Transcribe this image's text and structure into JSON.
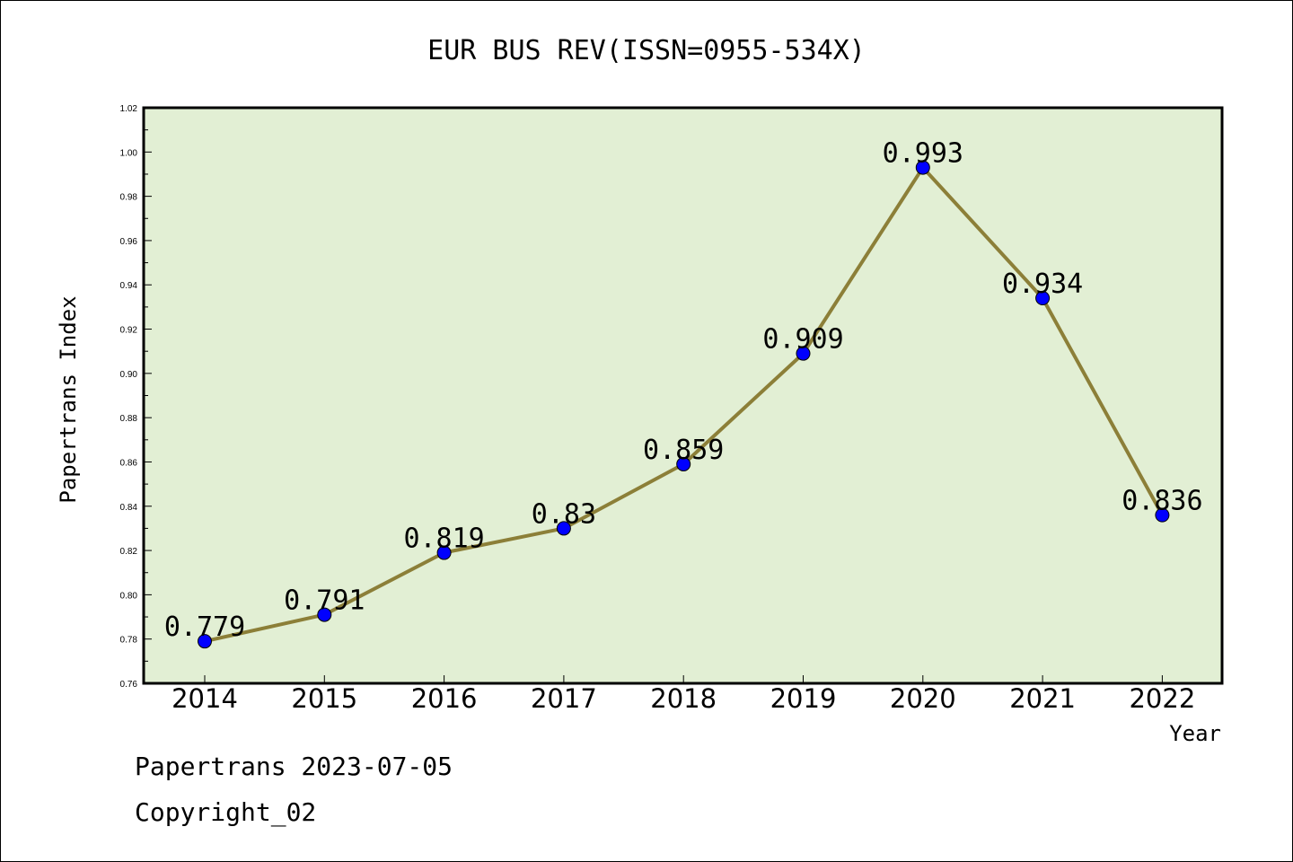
{
  "chart_data": {
    "type": "line",
    "title": "EUR BUS REV(ISSN=0955-534X)",
    "xlabel": "Year",
    "ylabel": "Papertrans Index",
    "categories": [
      "2014",
      "2015",
      "2016",
      "2017",
      "2018",
      "2019",
      "2020",
      "2021",
      "2022"
    ],
    "values": [
      0.779,
      0.791,
      0.819,
      0.83,
      0.859,
      0.909,
      0.993,
      0.934,
      0.836
    ],
    "data_labels": [
      "0.779",
      "0.791",
      "0.819",
      "0.83",
      "0.859",
      "0.909",
      "0.993",
      "0.934",
      "0.836"
    ],
    "ylim": [
      0.76,
      1.02
    ],
    "yticks": [
      "0.76",
      "0.78",
      "0.80",
      "0.82",
      "0.84",
      "0.86",
      "0.88",
      "0.90",
      "0.92",
      "0.94",
      "0.96",
      "0.98",
      "1.00",
      "1.02"
    ],
    "grid": false,
    "colors": {
      "plot_background": "#e2efd4",
      "line": "#8c7f38",
      "marker": "#0000ff"
    }
  },
  "footer": {
    "line1": "Papertrans 2023-07-05",
    "line2": "Copyright_02"
  }
}
